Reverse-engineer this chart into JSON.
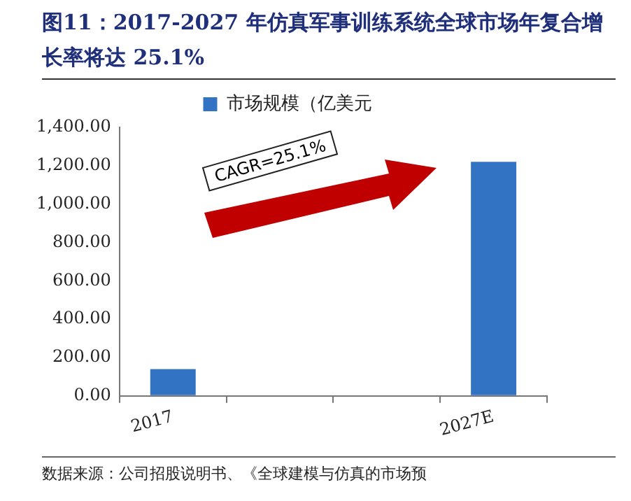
{
  "chart_data": {
    "type": "bar",
    "title": "图11：2017-2027 年仿真军事训练系统全球市场年复合增长率将达 25.1%",
    "categories": [
      "2017",
      null,
      null,
      "2027E"
    ],
    "series": [
      {
        "name": "市场规模（亿美元",
        "color": "#3373c4",
        "values": [
          140,
          null,
          null,
          1220
        ]
      }
    ],
    "ylim": [
      0,
      1400
    ],
    "yticks": [
      {
        "value": 0,
        "label": "0.00"
      },
      {
        "value": 200,
        "label": "200.00"
      },
      {
        "value": 400,
        "label": "400.00"
      },
      {
        "value": 600,
        "label": "600.00"
      },
      {
        "value": 800,
        "label": "800.00"
      },
      {
        "value": 1000,
        "label": "1,000.00"
      },
      {
        "value": 1200,
        "label": "1,200.00"
      },
      {
        "value": 1400,
        "label": "1,400.00"
      }
    ],
    "grid": false,
    "legend": "top",
    "annotations": [
      "CAGR=25.1%",
      "数据来源：公司招股说明书、《全球建模与仿真的市场预"
    ]
  }
}
